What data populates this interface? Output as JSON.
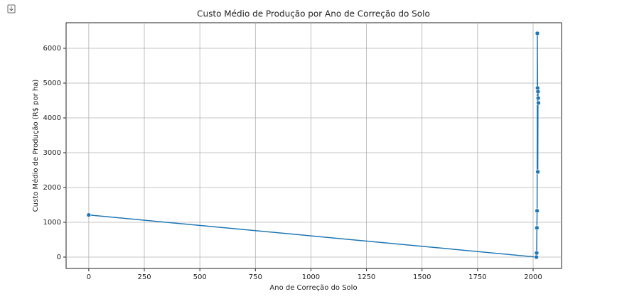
{
  "chart_data": {
    "type": "line",
    "title": "Custo Médio de Produção por Ano de Correção do Solo",
    "x_label": "Ano de Correção do Solo",
    "y_label": "Custo Médio de Produção (R$ por ha)",
    "x": [
      0,
      2015,
      2016,
      2017,
      2018,
      2019,
      2020,
      2021,
      2022,
      2023,
      2024
    ],
    "series": [
      {
        "color": "#1f77b4",
        "values": [
          1210,
          0,
          120,
          840,
          1330,
          6430,
          4860,
          2450,
          4755,
          4570,
          4430
        ]
      }
    ],
    "xlim": [
      -102,
      2128
    ],
    "xticks": [
      0,
      250,
      500,
      750,
      1000,
      1250,
      1500,
      1750,
      2000
    ],
    "ylim": [
      -327,
      6735
    ],
    "yticks": [
      0,
      1000,
      2000,
      3000,
      4000,
      5000,
      6000
    ],
    "grid": true
  }
}
